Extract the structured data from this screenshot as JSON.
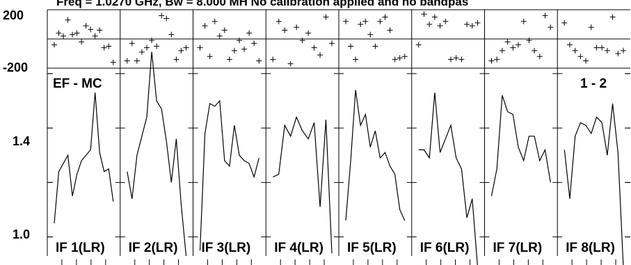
{
  "title": "Freq = 1.0270 GHz, Bw = 8.000 MH   No calibration applied and no bandpas",
  "corner_left": "EF - MC",
  "corner_right": "1 - 2",
  "phase_ticks": [
    "200",
    "-200"
  ],
  "amp_ticks": [
    "1.4",
    "1.0"
  ],
  "chart_data": {
    "type": "line",
    "title": "Freq = 1.0270 GHz, Bw = 8.000 MH   No calibration applied and no bandpas",
    "phase_ylim": [
      -200,
      200
    ],
    "amp_ylim": [
      0.93,
      1.62
    ],
    "panels": [
      {
        "label": "IF 1(LR)",
        "amplitude": [
          1.05,
          1.24,
          1.27,
          1.3,
          1.15,
          1.23,
          1.28,
          1.3,
          1.32,
          1.53,
          1.31,
          1.24,
          1.25,
          1.13
        ],
        "phase": [
          -40,
          40,
          20,
          130,
          30,
          40,
          -20,
          90,
          65,
          20,
          60,
          -60,
          -50,
          -160
        ]
      },
      {
        "label": "IF 2(LR)",
        "amplitude": [
          1.24,
          1.14,
          1.3,
          1.37,
          1.44,
          1.68,
          1.5,
          1.47,
          1.35,
          1.2,
          1.36,
          1.12,
          0.93
        ],
        "phase": [
          -150,
          -30,
          -150,
          -90,
          -60,
          -10,
          -50,
          160,
          140,
          30,
          -140,
          -80,
          -60
        ]
      },
      {
        "label": "IF 3(LR)",
        "amplitude": [
          0.95,
          1.38,
          1.49,
          1.48,
          1.5,
          1.28,
          1.26,
          1.41,
          1.3,
          1.28,
          1.27,
          1.22,
          1.29
        ],
        "phase": [
          -60,
          90,
          -120,
          120,
          20,
          60,
          -140,
          -80,
          -10,
          -70,
          40,
          -30,
          -150
        ]
      },
      {
        "label": "IF 4(LR)",
        "amplitude": [
          1.22,
          1.23,
          1.41,
          1.37,
          1.44,
          1.39,
          1.36,
          1.42,
          1.11,
          1.43,
          0.94
        ],
        "phase": [
          -140,
          120,
          60,
          -170,
          80,
          -10,
          40,
          -60,
          -110,
          150,
          -30
        ]
      },
      {
        "label": "IF 5(LR)",
        "amplitude": [
          1.06,
          1.28,
          1.54,
          1.41,
          1.45,
          1.33,
          1.39,
          1.29,
          1.31,
          1.26,
          1.23,
          1.1,
          1.06
        ],
        "phase": [
          120,
          -50,
          -140,
          100,
          120,
          30,
          -50,
          120,
          150,
          60,
          -140,
          -130,
          -120
        ]
      },
      {
        "label": "IF 6(LR)",
        "amplitude": [
          1.32,
          1.32,
          1.29,
          1.53,
          1.31,
          1.36,
          1.41,
          1.29,
          1.25,
          1.07,
          1.14,
          0.89
        ],
        "phase": [
          -40,
          170,
          100,
          150,
          90,
          120,
          -140,
          -130,
          -140,
          100,
          90,
          110
        ]
      },
      {
        "label": "IF 7(LR)",
        "amplitude": [
          1.15,
          1.25,
          1.52,
          1.46,
          1.45,
          1.33,
          1.28,
          1.37,
          1.37,
          1.28,
          1.32,
          1.2
        ],
        "phase": [
          -150,
          -140,
          -80,
          -20,
          -60,
          -40,
          120,
          -10,
          -80,
          -120,
          160,
          80
        ]
      },
      {
        "label": "IF 8(LR)",
        "amplitude": [
          1.32,
          1.14,
          1.37,
          1.42,
          1.41,
          1.38,
          1.44,
          1.42,
          1.3,
          1.49,
          1.31,
          0.89
        ],
        "phase": [
          110,
          -40,
          -80,
          -120,
          -150,
          80,
          -60,
          -60,
          -80,
          150,
          -100,
          -80
        ]
      }
    ]
  }
}
